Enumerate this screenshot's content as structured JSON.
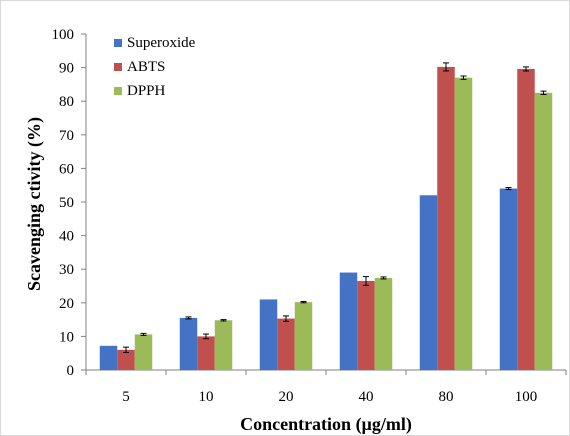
{
  "chart_data": {
    "type": "bar",
    "xlabel": "Concentration (µg/ml)",
    "ylabel": "Scavenging ctivity (%)",
    "categories": [
      "5",
      "10",
      "20",
      "40",
      "80",
      "100"
    ],
    "ylim": [
      0,
      100
    ],
    "yticks": [
      "0",
      "10",
      "20",
      "30",
      "40",
      "50",
      "60",
      "70",
      "80",
      "90",
      "100"
    ],
    "grid": false,
    "legend_position": "top-left",
    "series": [
      {
        "name": "Superoxide",
        "color": "#4472C4",
        "values": [
          7.2,
          15.5,
          21.0,
          29.0,
          52.0,
          54.0
        ],
        "errors": [
          0,
          0.3,
          0,
          0,
          0,
          0.3
        ]
      },
      {
        "name": "ABTS",
        "color": "#C0504D",
        "values": [
          6.0,
          10.0,
          15.3,
          26.5,
          90.2,
          89.6
        ],
        "errors": [
          0.8,
          0.7,
          0.8,
          1.3,
          1.2,
          0.6
        ]
      },
      {
        "name": "DPPH",
        "color": "#9BBB59",
        "values": [
          10.6,
          14.8,
          20.2,
          27.4,
          87.0,
          82.5
        ],
        "errors": [
          0.3,
          0.2,
          0.2,
          0.3,
          0.5,
          0.5
        ]
      }
    ]
  }
}
